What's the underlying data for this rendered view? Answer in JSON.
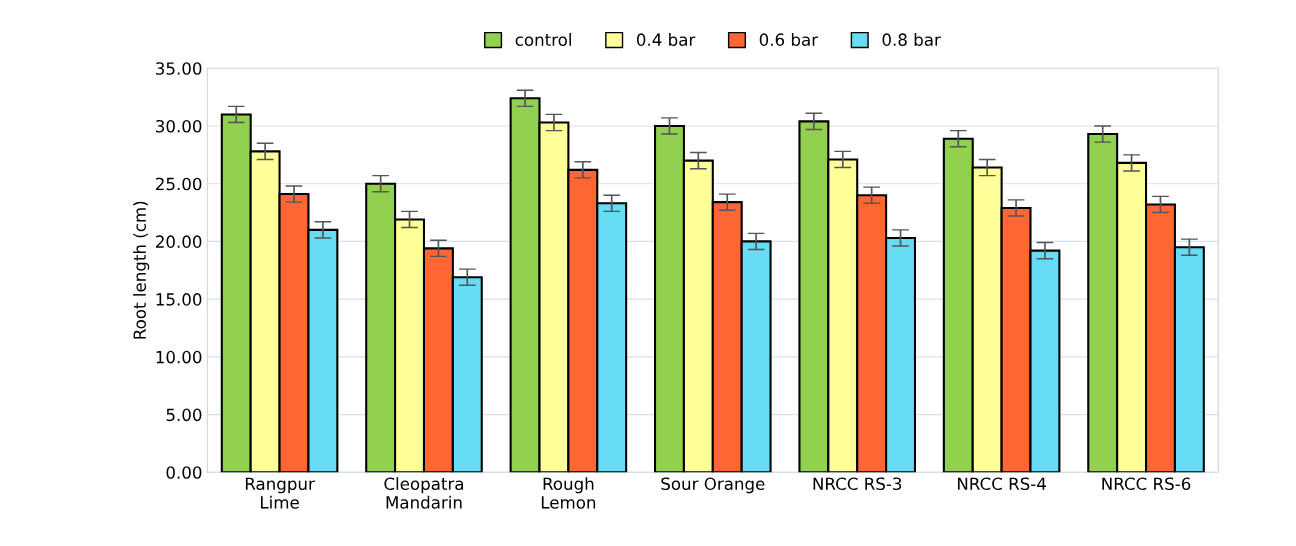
{
  "chart_data": {
    "type": "bar",
    "ylabel": "Root length (cm)",
    "categories": [
      "Rangpur\nLime",
      "Cleopatra\nMandarin",
      "Rough\nLemon",
      "Sour Orange",
      "NRCC RS-3",
      "NRCC RS-4",
      "NRCC RS-6"
    ],
    "series": [
      {
        "name": "control",
        "color": "#92d050",
        "values": [
          31.0,
          25.0,
          32.4,
          30.0,
          30.4,
          28.9,
          29.3
        ],
        "errors": [
          0.7,
          0.7,
          0.7,
          0.7,
          0.7,
          0.7,
          0.7
        ]
      },
      {
        "name": "0.4 bar",
        "color": "#ffff99",
        "values": [
          27.8,
          21.9,
          30.3,
          27.0,
          27.1,
          26.4,
          26.8
        ],
        "errors": [
          0.7,
          0.7,
          0.7,
          0.7,
          0.7,
          0.7,
          0.7
        ]
      },
      {
        "name": "0.6 bar",
        "color": "#ff6633",
        "values": [
          24.1,
          19.4,
          26.2,
          23.4,
          24.0,
          22.9,
          23.2
        ],
        "errors": [
          0.7,
          0.7,
          0.7,
          0.7,
          0.7,
          0.7,
          0.7
        ]
      },
      {
        "name": "0.8 bar",
        "color": "#66ddf5",
        "values": [
          21.0,
          16.9,
          23.3,
          20.0,
          20.3,
          19.2,
          19.5
        ],
        "errors": [
          0.7,
          0.7,
          0.7,
          0.7,
          0.7,
          0.7,
          0.7
        ]
      }
    ],
    "ylim": [
      0,
      35
    ],
    "yticks": [
      {
        "value": 0,
        "label": "0.00"
      },
      {
        "value": 5,
        "label": "5.00"
      },
      {
        "value": 10,
        "label": "10.00"
      },
      {
        "value": 15,
        "label": "15.00"
      },
      {
        "value": 20,
        "label": "20.00"
      },
      {
        "value": 25,
        "label": "25.00"
      },
      {
        "value": 30,
        "label": "30.00"
      },
      {
        "value": 35,
        "label": "35.00"
      }
    ],
    "grid": "y",
    "legend": "top"
  }
}
